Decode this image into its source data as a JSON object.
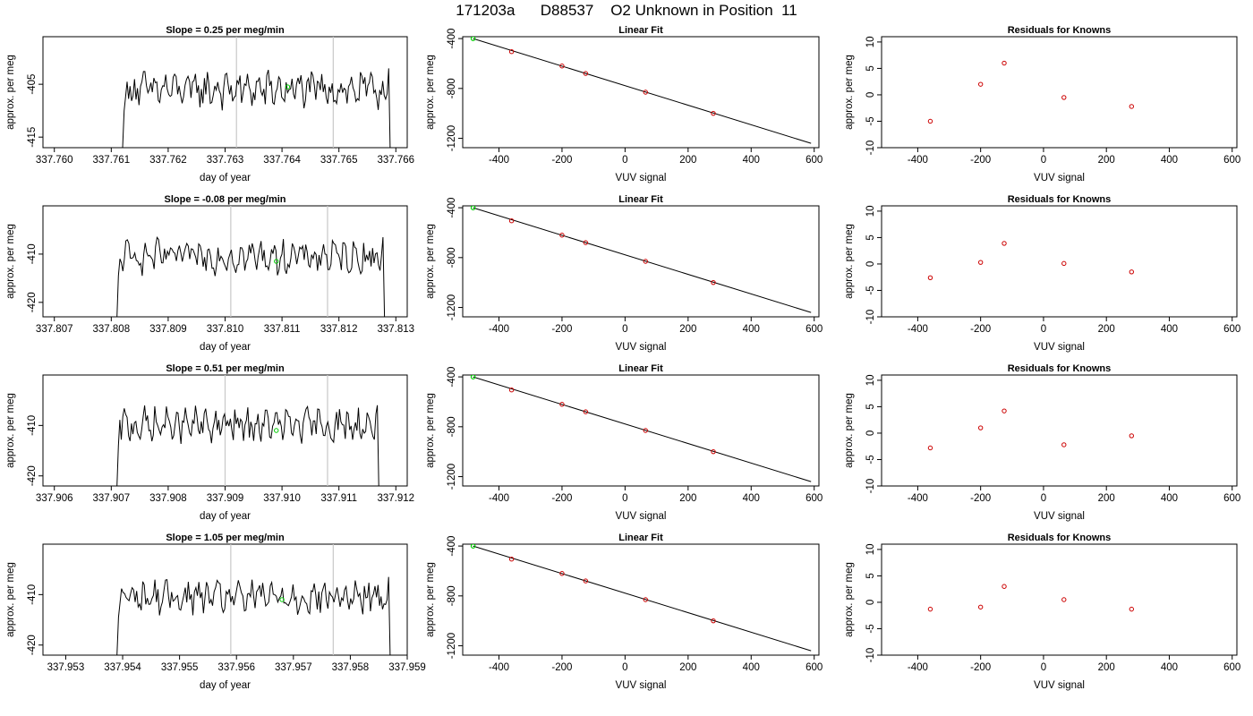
{
  "page": {
    "title": "171203a      D88537    O2 Unknown in Position  11"
  },
  "style": {
    "line_color": "#000000",
    "marker_known": "#cc0000",
    "marker_reference": "#00cc00",
    "vline_color": "#c8c8c8"
  },
  "chart_data": [
    {
      "type": "line",
      "panel": "timeseries",
      "row": 1,
      "title": "Slope =  0.25  per meg/min",
      "xlabel": "day of year",
      "ylabel": "approx. per meg",
      "xlim": [
        337.7598,
        337.7662
      ],
      "ylim": [
        -417,
        -396
      ],
      "xticks": [
        337.76,
        337.761,
        337.762,
        337.763,
        337.764,
        337.765,
        337.766
      ],
      "xtick_labels": [
        "337.760",
        "337.761",
        "337.762",
        "337.763",
        "337.764",
        "337.765",
        "337.766"
      ],
      "yticks": [
        -405,
        -415
      ],
      "ytick_labels": [
        "-405",
        "-415"
      ],
      "trace_start": 337.7612,
      "trace_end": 337.7659,
      "trace_level": -406,
      "trace_amplitude": 2.6,
      "trace_edge_drop": -417,
      "vlines": [
        337.7632,
        337.7649
      ],
      "marker": {
        "x": 337.7641,
        "y": -405.5
      }
    },
    {
      "type": "scatter",
      "panel": "fit",
      "row": 1,
      "title": "Linear Fit",
      "xlabel": "VUV signal",
      "ylabel": "approx. per meg",
      "xlim": [
        -515,
        615
      ],
      "ylim": [
        -1275,
        -385
      ],
      "xticks": [
        -400,
        -200,
        0,
        200,
        400,
        600
      ],
      "xtick_labels": [
        "-400",
        "-200",
        "0",
        "200",
        "400",
        "600"
      ],
      "yticks": [
        -400,
        -800,
        -1200
      ],
      "ytick_labels": [
        "-400",
        "-800",
        "-1200"
      ],
      "line": {
        "x": [
          -482,
          590
        ],
        "y": [
          -400,
          -1240
        ]
      },
      "reference_point": {
        "x": -482,
        "y": -400
      },
      "points": {
        "x": [
          -360,
          -200,
          -125,
          65,
          280
        ],
        "y": [
          -505,
          -620,
          -680,
          -830,
          -1000
        ]
      }
    },
    {
      "type": "scatter",
      "panel": "residuals",
      "row": 1,
      "title": "Residuals for Knowns",
      "xlabel": "VUV signal",
      "ylabel": "approx. per meg",
      "xlim": [
        -515,
        615
      ],
      "ylim": [
        -10,
        11
      ],
      "xticks": [
        -400,
        -200,
        0,
        200,
        400,
        600
      ],
      "xtick_labels": [
        "-400",
        "-200",
        "0",
        "200",
        "400",
        "600"
      ],
      "yticks": [
        10,
        5,
        0,
        -5,
        -10
      ],
      "ytick_labels": [
        "10",
        "5",
        "0",
        "-5",
        "-10"
      ],
      "points": {
        "x": [
          -360,
          -200,
          -125,
          65,
          280
        ],
        "y": [
          -5,
          2,
          6,
          -0.5,
          -2.2
        ]
      }
    },
    {
      "type": "line",
      "panel": "timeseries",
      "row": 2,
      "title": "Slope =  -0.08  per meg/min",
      "xlabel": "day of year",
      "ylabel": "approx. per meg",
      "xlim": [
        337.8068,
        337.8132
      ],
      "ylim": [
        -423,
        -400
      ],
      "xticks": [
        337.807,
        337.808,
        337.809,
        337.81,
        337.811,
        337.812,
        337.813
      ],
      "xtick_labels": [
        "337.807",
        "337.808",
        "337.809",
        "337.810",
        "337.811",
        "337.812",
        "337.813"
      ],
      "yticks": [
        -410,
        -420
      ],
      "ytick_labels": [
        "-410",
        "-420"
      ],
      "trace_start": 337.8081,
      "trace_end": 337.8128,
      "trace_level": -410.5,
      "trace_amplitude": 2.6,
      "trace_edge_drop": -423,
      "vlines": [
        337.8101,
        337.8118
      ],
      "marker": {
        "x": 337.8109,
        "y": -411.5
      }
    },
    {
      "type": "scatter",
      "panel": "fit",
      "row": 2,
      "title": "Linear Fit",
      "xlabel": "VUV signal",
      "ylabel": "approx. per meg",
      "xlim": [
        -515,
        615
      ],
      "ylim": [
        -1275,
        -385
      ],
      "xticks": [
        -400,
        -200,
        0,
        200,
        400,
        600
      ],
      "xtick_labels": [
        "-400",
        "-200",
        "0",
        "200",
        "400",
        "600"
      ],
      "yticks": [
        -400,
        -800,
        -1200
      ],
      "ytick_labels": [
        "-400",
        "-800",
        "-1200"
      ],
      "line": {
        "x": [
          -482,
          590
        ],
        "y": [
          -400,
          -1240
        ]
      },
      "reference_point": {
        "x": -482,
        "y": -400
      },
      "points": {
        "x": [
          -360,
          -200,
          -125,
          65,
          280
        ],
        "y": [
          -505,
          -620,
          -680,
          -830,
          -1000
        ]
      }
    },
    {
      "type": "scatter",
      "panel": "residuals",
      "row": 2,
      "title": "Residuals for Knowns",
      "xlabel": "VUV signal",
      "ylabel": "approx. per meg",
      "xlim": [
        -515,
        615
      ],
      "ylim": [
        -10,
        11
      ],
      "xticks": [
        -400,
        -200,
        0,
        200,
        400,
        600
      ],
      "xtick_labels": [
        "-400",
        "-200",
        "0",
        "200",
        "400",
        "600"
      ],
      "yticks": [
        10,
        5,
        0,
        -5,
        -10
      ],
      "ytick_labels": [
        "10",
        "5",
        "0",
        "-5",
        "-10"
      ],
      "points": {
        "x": [
          -360,
          -200,
          -125,
          65,
          280
        ],
        "y": [
          -2.6,
          0.3,
          3.9,
          0.1,
          -1.5
        ]
      }
    },
    {
      "type": "line",
      "panel": "timeseries",
      "row": 3,
      "title": "Slope =  0.51  per meg/min",
      "xlabel": "day of year",
      "ylabel": "approx. per meg",
      "xlim": [
        337.9058,
        337.9122
      ],
      "ylim": [
        -422,
        -400
      ],
      "xticks": [
        337.906,
        337.907,
        337.908,
        337.909,
        337.91,
        337.911,
        337.912
      ],
      "xtick_labels": [
        "337.906",
        "337.907",
        "337.908",
        "337.909",
        "337.910",
        "337.911",
        "337.912"
      ],
      "yticks": [
        -410,
        -420
      ],
      "ytick_labels": [
        "-410",
        "-420"
      ],
      "trace_start": 337.9071,
      "trace_end": 337.9117,
      "trace_level": -410,
      "trace_amplitude": 2.6,
      "trace_edge_drop": -422,
      "vlines": [
        337.909,
        337.9108
      ],
      "marker": {
        "x": 337.9099,
        "y": -411
      }
    },
    {
      "type": "scatter",
      "panel": "fit",
      "row": 3,
      "title": "Linear Fit",
      "xlabel": "VUV signal",
      "ylabel": "approx. per meg",
      "xlim": [
        -515,
        615
      ],
      "ylim": [
        -1275,
        -385
      ],
      "xticks": [
        -400,
        -200,
        0,
        200,
        400,
        600
      ],
      "xtick_labels": [
        "-400",
        "-200",
        "0",
        "200",
        "400",
        "600"
      ],
      "yticks": [
        -400,
        -800,
        -1200
      ],
      "ytick_labels": [
        "-400",
        "-800",
        "-1200"
      ],
      "line": {
        "x": [
          -482,
          590
        ],
        "y": [
          -400,
          -1240
        ]
      },
      "reference_point": {
        "x": -482,
        "y": -400
      },
      "points": {
        "x": [
          -360,
          -200,
          -125,
          65,
          280
        ],
        "y": [
          -505,
          -620,
          -680,
          -830,
          -1000
        ]
      }
    },
    {
      "type": "scatter",
      "panel": "residuals",
      "row": 3,
      "title": "Residuals for Knowns",
      "xlabel": "VUV signal",
      "ylabel": "approx. per meg",
      "xlim": [
        -515,
        615
      ],
      "ylim": [
        -10,
        11
      ],
      "xticks": [
        -400,
        -200,
        0,
        200,
        400,
        600
      ],
      "xtick_labels": [
        "-400",
        "-200",
        "0",
        "200",
        "400",
        "600"
      ],
      "yticks": [
        10,
        5,
        0,
        -5,
        -10
      ],
      "ytick_labels": [
        "10",
        "5",
        "0",
        "-5",
        "-10"
      ],
      "points": {
        "x": [
          -360,
          -200,
          -125,
          65,
          280
        ],
        "y": [
          -2.8,
          1.0,
          4.2,
          -2.2,
          -0.5
        ]
      }
    },
    {
      "type": "line",
      "panel": "timeseries",
      "row": 4,
      "title": "Slope =  1.05  per meg/min",
      "xlabel": "day of year",
      "ylabel": "approx. per meg",
      "xlim": [
        337.9526,
        337.959
      ],
      "ylim": [
        -422,
        -400
      ],
      "xticks": [
        337.953,
        337.954,
        337.955,
        337.956,
        337.957,
        337.958,
        337.959
      ],
      "xtick_labels": [
        "337.953",
        "337.954",
        "337.955",
        "337.956",
        "337.957",
        "337.958",
        "337.959"
      ],
      "yticks": [
        -410,
        -420
      ],
      "ytick_labels": [
        "-410",
        "-420"
      ],
      "trace_start": 337.9539,
      "trace_end": 337.9587,
      "trace_level": -410.5,
      "trace_amplitude": 2.6,
      "trace_edge_drop": -422,
      "vlines": [
        337.9559,
        337.9577
      ],
      "marker": {
        "x": 337.9568,
        "y": -411
      }
    },
    {
      "type": "scatter",
      "panel": "fit",
      "row": 4,
      "title": "Linear Fit",
      "xlabel": "VUV signal",
      "ylabel": "approx. per meg",
      "xlim": [
        -515,
        615
      ],
      "ylim": [
        -1275,
        -385
      ],
      "xticks": [
        -400,
        -200,
        0,
        200,
        400,
        600
      ],
      "xtick_labels": [
        "-400",
        "-200",
        "0",
        "200",
        "400",
        "600"
      ],
      "yticks": [
        -400,
        -800,
        -1200
      ],
      "ytick_labels": [
        "-400",
        "-800",
        "-1200"
      ],
      "line": {
        "x": [
          -482,
          590
        ],
        "y": [
          -400,
          -1240
        ]
      },
      "reference_point": {
        "x": -482,
        "y": -400
      },
      "points": {
        "x": [
          -360,
          -200,
          -125,
          65,
          280
        ],
        "y": [
          -505,
          -620,
          -680,
          -830,
          -1000
        ]
      }
    },
    {
      "type": "scatter",
      "panel": "residuals",
      "row": 4,
      "title": "Residuals for Knowns",
      "xlabel": "VUV signal",
      "ylabel": "approx. per meg",
      "xlim": [
        -515,
        615
      ],
      "ylim": [
        -10,
        11
      ],
      "xticks": [
        -400,
        -200,
        0,
        200,
        400,
        600
      ],
      "xtick_labels": [
        "-400",
        "-200",
        "0",
        "200",
        "400",
        "600"
      ],
      "yticks": [
        10,
        5,
        0,
        -5,
        -10
      ],
      "ytick_labels": [
        "10",
        "5",
        "0",
        "-5",
        "-10"
      ],
      "points": {
        "x": [
          -360,
          -200,
          -125,
          65,
          280
        ],
        "y": [
          -1.3,
          -0.9,
          3.0,
          0.5,
          -1.3
        ]
      }
    }
  ]
}
